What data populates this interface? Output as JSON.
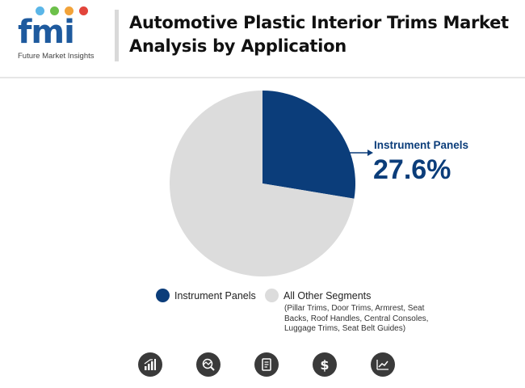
{
  "header": {
    "logo_text": "fmi",
    "logo_tagline": "Future Market Insights",
    "title": "Automotive Plastic Interior Trims Market Analysis by Application"
  },
  "colors": {
    "primary": "#0b3d7a",
    "other": "#dcdcdc",
    "logo_blue": "#1e5a9e",
    "icon_bg": "#3a3a3a"
  },
  "chart_data": {
    "type": "pie",
    "title": "Automotive Plastic Interior Trims Market Analysis by Application",
    "slices": [
      {
        "name": "Instrument Panels",
        "value": 27.6,
        "color": "#0b3d7a"
      },
      {
        "name": "All Other Segments",
        "value": 72.4,
        "color": "#dcdcdc"
      }
    ],
    "callout": {
      "label": "Instrument Panels",
      "value_text": "27.6%"
    },
    "legend": [
      {
        "label": "Instrument Panels",
        "color": "#0b3d7a"
      },
      {
        "label": "All Other Segments",
        "color": "#dcdcdc",
        "note": "(Pillar Trims, Door Trims, Armrest, Seat Backs, Roof Handles, Central Consoles, Luggage Trims, Seat Belt Guides)"
      }
    ]
  },
  "footer_icons": [
    "growth-chart-icon",
    "market-analysis-icon",
    "report-document-icon",
    "dollar-icon",
    "trend-chart-icon"
  ]
}
